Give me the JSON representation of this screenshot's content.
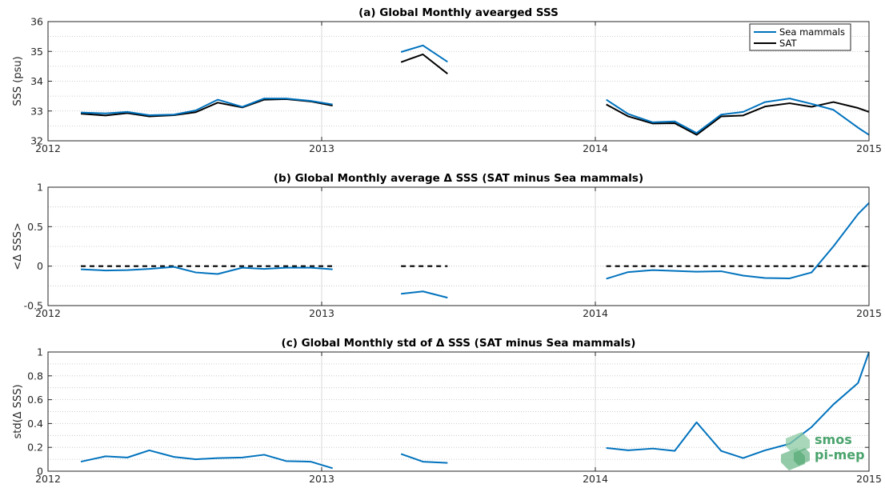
{
  "logo": {
    "line1": "smos",
    "line2": "pi-mep"
  },
  "chart_data": [
    {
      "type": "line",
      "title": "(a) Global Monthly avearged SSS",
      "ylabel": "SSS (psu)",
      "xlim": [
        2012,
        2015
      ],
      "ylim": [
        32,
        36
      ],
      "x_ticks": [
        2012,
        2013,
        2014,
        2015
      ],
      "x_tick_labels": [
        "2012",
        "2013",
        "2014",
        "2015"
      ],
      "y_ticks": [
        32,
        33,
        34,
        35,
        36
      ],
      "y_tick_labels": [
        "32",
        "33",
        "34",
        "35",
        "36"
      ],
      "grid": true,
      "legend": {
        "placement": "top-right",
        "entries": [
          "Sea mammals",
          "SAT"
        ]
      },
      "series": [
        {
          "name": "Sea mammals",
          "color": "#0072bd",
          "segments": [
            [
              [
                2012.12,
                32.95
              ],
              [
                2012.21,
                32.92
              ],
              [
                2012.29,
                32.97
              ],
              [
                2012.37,
                32.86
              ],
              [
                2012.46,
                32.88
              ],
              [
                2012.54,
                33.02
              ],
              [
                2012.62,
                33.38
              ],
              [
                2012.71,
                33.14
              ],
              [
                2012.79,
                33.42
              ],
              [
                2012.87,
                33.42
              ],
              [
                2012.96,
                33.34
              ],
              [
                2013.04,
                33.22
              ]
            ],
            [
              [
                2013.29,
                34.98
              ],
              [
                2013.37,
                35.2
              ],
              [
                2013.46,
                34.65
              ]
            ],
            [
              [
                2014.04,
                33.38
              ],
              [
                2014.12,
                32.9
              ],
              [
                2014.21,
                32.62
              ],
              [
                2014.29,
                32.65
              ],
              [
                2014.37,
                32.26
              ],
              [
                2014.46,
                32.88
              ],
              [
                2014.54,
                32.97
              ],
              [
                2014.62,
                33.3
              ],
              [
                2014.71,
                33.42
              ],
              [
                2014.79,
                33.24
              ],
              [
                2014.87,
                33.04
              ],
              [
                2014.96,
                32.44
              ],
              [
                2015.0,
                32.2
              ]
            ]
          ]
        },
        {
          "name": "SAT",
          "color": "#000000",
          "segments": [
            [
              [
                2012.12,
                32.91
              ],
              [
                2012.21,
                32.85
              ],
              [
                2012.29,
                32.93
              ],
              [
                2012.37,
                32.82
              ],
              [
                2012.46,
                32.86
              ],
              [
                2012.54,
                32.96
              ],
              [
                2012.62,
                33.28
              ],
              [
                2012.71,
                33.12
              ],
              [
                2012.79,
                33.38
              ],
              [
                2012.87,
                33.4
              ],
              [
                2012.96,
                33.32
              ],
              [
                2013.04,
                33.18
              ]
            ],
            [
              [
                2013.29,
                34.64
              ],
              [
                2013.37,
                34.9
              ],
              [
                2013.46,
                34.25
              ]
            ],
            [
              [
                2014.04,
                33.22
              ],
              [
                2014.12,
                32.82
              ],
              [
                2014.21,
                32.58
              ],
              [
                2014.29,
                32.59
              ],
              [
                2014.37,
                32.2
              ],
              [
                2014.46,
                32.82
              ],
              [
                2014.54,
                32.85
              ],
              [
                2014.62,
                33.15
              ],
              [
                2014.71,
                33.26
              ],
              [
                2014.79,
                33.14
              ],
              [
                2014.87,
                33.3
              ],
              [
                2014.96,
                33.1
              ],
              [
                2015.0,
                32.97
              ]
            ]
          ]
        }
      ]
    },
    {
      "type": "line",
      "title": "(b) Global Monthly average Δ SSS (SAT minus Sea mammals)",
      "ylabel": "<Δ SSS>",
      "xlim": [
        2012,
        2015
      ],
      "ylim": [
        -0.5,
        1
      ],
      "x_ticks": [
        2012,
        2013,
        2014,
        2015
      ],
      "x_tick_labels": [
        "2012",
        "2013",
        "2014",
        "2015"
      ],
      "y_ticks": [
        -0.5,
        0,
        0.5,
        1
      ],
      "y_tick_labels": [
        "-0.5",
        "0",
        "0.5",
        "1"
      ],
      "grid": true,
      "reference_line": {
        "y": 0,
        "color": "#000000",
        "style": "dashed",
        "x_segments": [
          [
            2012.12,
            2013.04
          ],
          [
            2013.29,
            2013.46
          ],
          [
            2014.04,
            2015.0
          ]
        ]
      },
      "series": [
        {
          "color": "#0072bd",
          "segments": [
            [
              [
                2012.12,
                -0.04
              ],
              [
                2012.21,
                -0.055
              ],
              [
                2012.29,
                -0.05
              ],
              [
                2012.37,
                -0.035
              ],
              [
                2012.46,
                -0.01
              ],
              [
                2012.54,
                -0.08
              ],
              [
                2012.62,
                -0.1
              ],
              [
                2012.71,
                -0.02
              ],
              [
                2012.79,
                -0.035
              ],
              [
                2012.87,
                -0.02
              ],
              [
                2012.96,
                -0.02
              ],
              [
                2013.04,
                -0.04
              ]
            ],
            [
              [
                2013.29,
                -0.35
              ],
              [
                2013.37,
                -0.32
              ],
              [
                2013.46,
                -0.4
              ]
            ],
            [
              [
                2014.04,
                -0.16
              ],
              [
                2014.12,
                -0.075
              ],
              [
                2014.21,
                -0.05
              ],
              [
                2014.29,
                -0.06
              ],
              [
                2014.37,
                -0.07
              ],
              [
                2014.46,
                -0.065
              ],
              [
                2014.54,
                -0.12
              ],
              [
                2014.62,
                -0.15
              ],
              [
                2014.71,
                -0.155
              ],
              [
                2014.79,
                -0.08
              ],
              [
                2014.87,
                0.25
              ],
              [
                2014.96,
                0.66
              ],
              [
                2015.0,
                0.8
              ]
            ]
          ]
        }
      ]
    },
    {
      "type": "line",
      "title": "(c) Global Monthly std of Δ SSS (SAT minus Sea mammals)",
      "ylabel": "std(Δ SSS)",
      "xlim": [
        2012,
        2015
      ],
      "ylim": [
        0,
        1
      ],
      "x_ticks": [
        2012,
        2013,
        2014,
        2015
      ],
      "x_tick_labels": [
        "2012",
        "2013",
        "2014",
        "2015"
      ],
      "y_ticks": [
        0,
        0.2,
        0.4,
        0.6,
        0.8,
        1
      ],
      "y_tick_labels": [
        "0",
        "0.2",
        "0.4",
        "0.6",
        "0.8",
        "1"
      ],
      "grid": true,
      "series": [
        {
          "color": "#0072bd",
          "segments": [
            [
              [
                2012.12,
                0.08
              ],
              [
                2012.21,
                0.125
              ],
              [
                2012.29,
                0.115
              ],
              [
                2012.37,
                0.175
              ],
              [
                2012.46,
                0.12
              ],
              [
                2012.54,
                0.1
              ],
              [
                2012.62,
                0.11
              ],
              [
                2012.71,
                0.115
              ],
              [
                2012.79,
                0.138
              ],
              [
                2012.87,
                0.085
              ],
              [
                2012.96,
                0.08
              ],
              [
                2013.04,
                0.025
              ]
            ],
            [
              [
                2013.29,
                0.145
              ],
              [
                2013.37,
                0.08
              ],
              [
                2013.46,
                0.07
              ]
            ],
            [
              [
                2014.04,
                0.195
              ],
              [
                2014.12,
                0.175
              ],
              [
                2014.21,
                0.19
              ],
              [
                2014.29,
                0.17
              ],
              [
                2014.37,
                0.41
              ],
              [
                2014.46,
                0.17
              ],
              [
                2014.54,
                0.11
              ],
              [
                2014.62,
                0.175
              ],
              [
                2014.71,
                0.23
              ],
              [
                2014.79,
                0.37
              ],
              [
                2014.87,
                0.56
              ],
              [
                2014.96,
                0.74
              ],
              [
                2015.0,
                1.0
              ]
            ]
          ]
        }
      ]
    }
  ]
}
